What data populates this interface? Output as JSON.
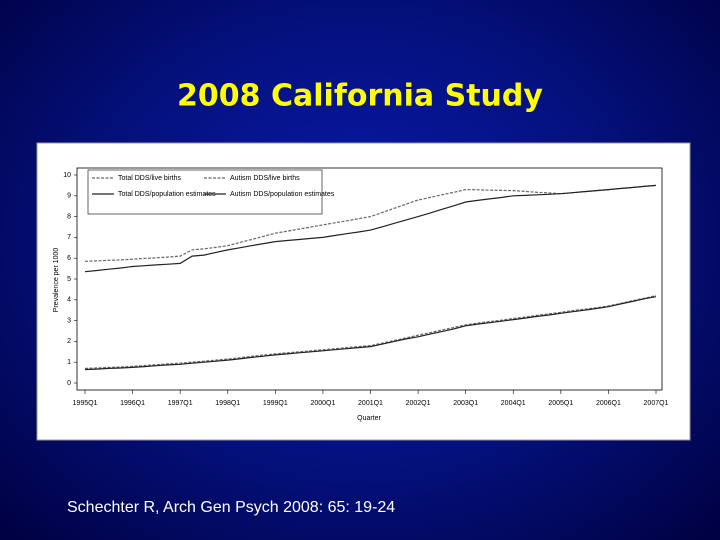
{
  "chart_data": {
    "type": "line",
    "title": "2008 California Study",
    "caption": "Schechter R, Arch Gen Psych 2008: 65: 19-24",
    "xlabel": "Quarter",
    "ylabel": "Prevalence per 1000",
    "categories": [
      "1995Q1",
      null,
      null,
      null,
      "1996Q1",
      null,
      null,
      null,
      "1997Q1",
      null,
      null,
      null,
      "1998Q1",
      null,
      null,
      null,
      "1999Q1",
      null,
      null,
      null,
      "2000Q1",
      null,
      null,
      null,
      "2001Q1",
      null,
      null,
      null,
      "2002Q1",
      null,
      null,
      null,
      "2003Q1",
      null,
      null,
      null,
      "2004Q1",
      null,
      null,
      null,
      "2005Q1",
      null,
      null,
      null,
      "2006Q1",
      null,
      null,
      null,
      "2007Q1"
    ],
    "ylim": [
      0,
      10
    ],
    "yticks": [
      0,
      1,
      2,
      3,
      4,
      5,
      6,
      7,
      8,
      9,
      10
    ],
    "series": [
      {
        "name": "Total DDS/live births",
        "color": "#666666",
        "dashed": true,
        "values": [
          5.85,
          5.87,
          5.9,
          5.92,
          5.95,
          5.99,
          6.02,
          6.06,
          6.1,
          6.4,
          6.45,
          6.52,
          6.6,
          6.75,
          6.9,
          7.05,
          7.2,
          7.3,
          7.4,
          7.5,
          7.6,
          7.7,
          7.8,
          7.9,
          8.0,
          8.2,
          8.4,
          8.6,
          8.8,
          8.92,
          9.05,
          9.17,
          9.3,
          9.29,
          9.27,
          9.26,
          9.25,
          9.21,
          9.17,
          9.14,
          9.1,
          9.15,
          9.2,
          9.25,
          9.3,
          9.35,
          9.4,
          9.45,
          9.5
        ]
      },
      {
        "name": "Autism DDS/live births",
        "color": "#666666",
        "dashed": true,
        "values": [
          0.7,
          0.72,
          0.75,
          0.77,
          0.8,
          0.84,
          0.88,
          0.92,
          0.95,
          1.0,
          1.05,
          1.1,
          1.15,
          1.21,
          1.28,
          1.34,
          1.4,
          1.45,
          1.5,
          1.55,
          1.6,
          1.65,
          1.7,
          1.75,
          1.8,
          1.92,
          2.05,
          2.17,
          2.3,
          2.42,
          2.55,
          2.67,
          2.8,
          2.88,
          2.95,
          3.02,
          3.1,
          3.17,
          3.25,
          3.32,
          3.4,
          3.48,
          3.55,
          3.62,
          3.7,
          3.82,
          3.95,
          4.07,
          4.2
        ]
      },
      {
        "name": "Total DDS/population estimates",
        "color": "#222222",
        "dashed": false,
        "values": [
          5.35,
          5.41,
          5.47,
          5.53,
          5.6,
          5.64,
          5.68,
          5.71,
          5.75,
          6.1,
          6.15,
          6.28,
          6.4,
          6.5,
          6.6,
          6.7,
          6.8,
          6.85,
          6.9,
          6.95,
          7.0,
          7.09,
          7.18,
          7.26,
          7.35,
          7.51,
          7.68,
          7.84,
          8.0,
          8.17,
          8.35,
          8.52,
          8.7,
          8.78,
          8.85,
          8.92,
          9.0,
          9.02,
          9.05,
          9.07,
          9.1,
          9.15,
          9.2,
          9.25,
          9.3,
          9.35,
          9.4,
          9.45,
          9.5
        ]
      },
      {
        "name": "Autism DDS/population estimates",
        "color": "#222222",
        "dashed": false,
        "values": [
          0.65,
          0.67,
          0.7,
          0.72,
          0.75,
          0.79,
          0.83,
          0.87,
          0.9,
          0.95,
          1.0,
          1.05,
          1.1,
          1.16,
          1.23,
          1.29,
          1.35,
          1.4,
          1.45,
          1.5,
          1.55,
          1.6,
          1.65,
          1.7,
          1.75,
          1.87,
          2.0,
          2.12,
          2.22,
          2.35,
          2.47,
          2.6,
          2.75,
          2.83,
          2.9,
          2.97,
          3.05,
          3.12,
          3.2,
          3.27,
          3.35,
          3.43,
          3.5,
          3.58,
          3.67,
          3.8,
          3.92,
          4.05,
          4.15
        ]
      }
    ]
  }
}
